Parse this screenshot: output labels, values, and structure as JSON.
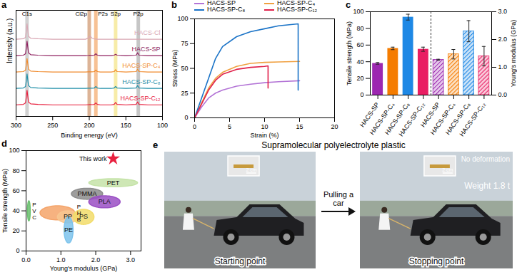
{
  "chart_data": [
    {
      "type": "line",
      "label": "a",
      "x_label": "Binding energy (eV)",
      "y_label": "Intensity (a.u.)",
      "tick_labels": "x",
      "xlim": [
        300,
        100
      ],
      "xticks": [
        300,
        250,
        200,
        150,
        100
      ],
      "ylim": [
        0,
        110
      ],
      "peaks": [
        {
          "name": "C1s",
          "x": 285,
          "color": "#b8b8b8"
        },
        {
          "name": "Cl2p",
          "x": 200,
          "color": "#c98a5e"
        },
        {
          "name": "P2s",
          "x": 191,
          "color": "#f2a05a"
        },
        {
          "name": "S2p",
          "x": 164,
          "color": "#f3e27a"
        },
        {
          "name": "P2p",
          "x": 133,
          "color": "#a8a8a8"
        }
      ],
      "x": [
        300,
        290,
        287,
        285,
        283,
        280,
        270,
        250,
        230,
        205,
        201,
        199,
        196,
        193,
        191,
        189,
        185,
        170,
        166,
        164,
        162,
        150,
        136,
        134,
        132,
        120,
        100
      ],
      "series": [
        {
          "name": "HACS-Cl",
          "color": "#d9a7b4",
          "values": [
            80,
            80.5,
            82,
            96,
            83,
            81,
            80.5,
            80,
            80,
            80,
            81.5,
            83.5,
            81,
            80.3,
            80.2,
            80,
            80,
            80,
            80,
            80,
            80,
            80,
            80,
            80,
            80,
            80,
            80
          ]
        },
        {
          "name": "HACS-SP",
          "color": "#8e1f5e",
          "values": [
            63,
            63.5,
            65,
            78,
            66,
            64,
            63.5,
            63,
            63,
            63,
            63.3,
            63.5,
            63.2,
            63.5,
            65,
            63.5,
            63,
            63,
            63.5,
            64.5,
            63.5,
            63,
            63.5,
            66,
            63.5,
            63,
            63
          ]
        },
        {
          "name": "HACS-SP-C₄",
          "color": "#f08a2c",
          "values": [
            46,
            46.5,
            48,
            60,
            49,
            47,
            46.5,
            46,
            46,
            46,
            46.2,
            46.3,
            46.2,
            46.5,
            48,
            46.5,
            46,
            46,
            46.5,
            48.5,
            46.5,
            46,
            46.5,
            49,
            46.5,
            46,
            46
          ]
        },
        {
          "name": "HACS-SP-C₈",
          "color": "#1f8fa8",
          "values": [
            29,
            29.5,
            31,
            44,
            32,
            30,
            29.5,
            29,
            29,
            29,
            29.2,
            29.3,
            29.2,
            29.5,
            31,
            29.5,
            29,
            29,
            29.5,
            31,
            29.5,
            29,
            29.5,
            32,
            29.5,
            29,
            29
          ]
        },
        {
          "name": "HACS-SP-C₁₂",
          "color": "#e8213f",
          "values": [
            12,
            12.5,
            14,
            27,
            15,
            13,
            12.5,
            12,
            12,
            12,
            12.2,
            12.3,
            12.2,
            12.5,
            14,
            12.5,
            12,
            12,
            12.5,
            14.5,
            12.5,
            12,
            12.5,
            15,
            12.5,
            12,
            12
          ]
        }
      ]
    },
    {
      "type": "line",
      "label": "b",
      "x_label": "Strain (%)",
      "y_label": "Stress (MPa)",
      "legend": "top",
      "xlim": [
        0,
        20
      ],
      "xticks": [
        0,
        5,
        10,
        15,
        20
      ],
      "ylim": [
        0,
        100
      ],
      "yticks": [
        0,
        25,
        50,
        75,
        100
      ],
      "series": [
        {
          "name": "HACS-SP",
          "color": "#b374d6",
          "x": [
            0,
            1,
            2,
            3,
            4,
            6,
            8,
            10,
            12,
            15
          ],
          "values": [
            0,
            11,
            20,
            25,
            28,
            32,
            34,
            35.5,
            36.5,
            37.5
          ]
        },
        {
          "name": "HACS-SP-C₄",
          "color": "#f0a040",
          "x": [
            0,
            1,
            2,
            3,
            4,
            6,
            8,
            10,
            12,
            15
          ],
          "values": [
            0,
            15,
            30,
            40,
            46,
            52,
            55,
            56,
            56.5,
            57
          ]
        },
        {
          "name": "HACS-SP-C₈",
          "color": "#1a73c7",
          "x": [
            0,
            1,
            2,
            3,
            4,
            6,
            8,
            10,
            12,
            14.8,
            14.8
          ],
          "values": [
            0,
            20,
            40,
            60,
            72,
            82,
            87,
            90,
            93,
            95,
            28
          ]
        },
        {
          "name": "HACS-SP-C₁₂",
          "color": "#e0204a",
          "x": [
            0,
            1,
            2,
            3,
            4,
            6,
            8,
            10,
            10.5,
            10.5
          ],
          "values": [
            0,
            14,
            28,
            38,
            44,
            49,
            51,
            52,
            52.5,
            30
          ]
        }
      ]
    },
    {
      "type": "bar",
      "label": "c",
      "y_label": "Tensile strength (MPa)",
      "y2_label": "Young's modulus (GPa)",
      "categories": [
        "HACS-SP",
        "HACS-SP-C₄",
        "HACS-SP-C₈",
        "HACS-SP-C₁₂",
        "HACS-SP",
        "HACS-SP-C₄",
        "HACS-SP-C₈",
        "HACS-SP-C₁₂"
      ],
      "colors": [
        "#9c27b0",
        "#f57c00",
        "#1e88e5",
        "#e91e63",
        "#9c27b0",
        "#f57c00",
        "#1e88e5",
        "#e91e63"
      ],
      "ylim": [
        0,
        100
      ],
      "yticks": [
        0,
        20,
        40,
        60,
        80,
        100
      ],
      "y2lim": [
        0,
        3
      ],
      "y2ticks": [
        0,
        1,
        2,
        3
      ],
      "series": [
        {
          "axis": "y",
          "values": [
            38,
            56,
            93.5,
            55,
            null,
            null,
            null,
            null
          ],
          "errors": [
            1,
            1.5,
            3.5,
            2.5,
            null,
            null,
            null,
            null
          ]
        },
        {
          "axis": "y2",
          "values": [
            null,
            null,
            null,
            null,
            1.27,
            1.47,
            2.3,
            1.4
          ],
          "errors": [
            null,
            null,
            null,
            null,
            0.02,
            0.17,
            0.38,
            0.35
          ]
        }
      ]
    },
    {
      "type": "scatter",
      "label": "d",
      "x_label": "Young's modulus (GPa)",
      "y_label": "Tensile strength (MPa)",
      "xlim": [
        0,
        3.3
      ],
      "xticks": [
        0,
        1,
        2,
        3
      ],
      "ylim": [
        0,
        100
      ],
      "yticks": [
        0,
        20,
        40,
        60,
        80,
        100
      ],
      "regions": [
        {
          "name": "PET",
          "color": "#c5e3a8",
          "x": 2.5,
          "y": 68,
          "rx": 0.7,
          "ry": 4
        },
        {
          "name": "PMMA",
          "color": "#8c8c8c",
          "x": 1.75,
          "y": 57,
          "rx": 0.45,
          "ry": 5.5
        },
        {
          "name": "PLA",
          "color": "#9a4fc4",
          "x": 2.25,
          "y": 49,
          "rx": 0.45,
          "ry": 6
        },
        {
          "name": "PHB",
          "color": "#f4a46a",
          "x": 0.9,
          "y": 38,
          "rx": 0.5,
          "ry": 7
        },
        {
          "name": "PP",
          "color": "#f7c690",
          "x": 1.2,
          "y": 34,
          "rx": 0.3,
          "ry": 6
        },
        {
          "name": "PS",
          "color": "#f2dc6a",
          "x": 1.65,
          "y": 34,
          "rx": 0.3,
          "ry": 7.5
        },
        {
          "name": "PE",
          "color": "#7cc3ec",
          "x": 1.22,
          "y": 21,
          "rx": 0.13,
          "ry": 13
        },
        {
          "name": "PVC",
          "color": "#6cc070",
          "x": 0.08,
          "y": 40,
          "rx": 0.04,
          "ry": 10
        }
      ],
      "points": [
        {
          "name": "This work",
          "x": 2.5,
          "y": 92,
          "color": "#e8213f",
          "marker": "star"
        }
      ]
    },
    {
      "type": "photo",
      "label": "e",
      "title": "Supramolecular polyelectrolyte plastic",
      "arrow_label": "Pulling a car",
      "photos": [
        {
          "caption": "Starting point",
          "scale_bar": "2 cm",
          "annotations": []
        },
        {
          "caption": "Stopping point",
          "scale_bar": "2 cm",
          "annotations": [
            "No deformation",
            "Weight 1.8 t"
          ]
        }
      ]
    }
  ]
}
